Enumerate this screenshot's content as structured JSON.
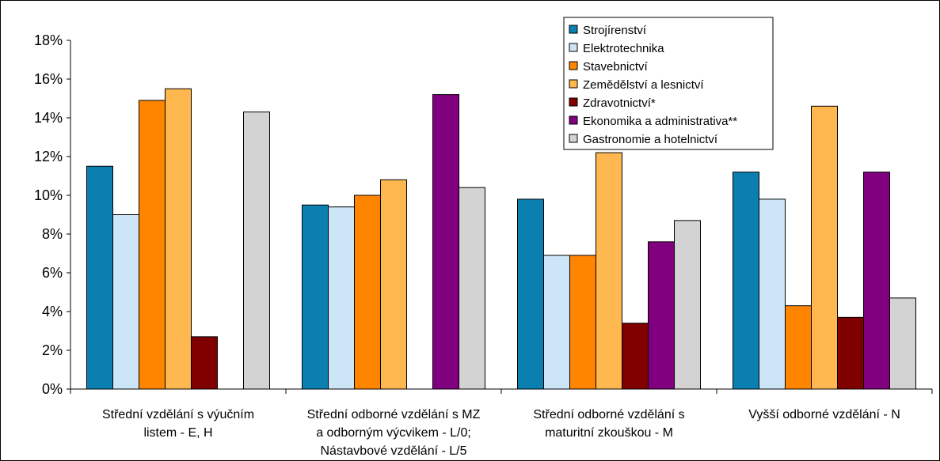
{
  "chart_data": {
    "type": "bar",
    "categories": [
      [
        "Střední vzdělání s výučním",
        "listem - E, H"
      ],
      [
        "Střední odborné vzdělání s MZ",
        "a odborným výcvikem - L/0;",
        "Nástavbové vzdělání - L/5"
      ],
      [
        "Střední odborné vzdělání s",
        "maturitní zkouškou - M"
      ],
      [
        "Vyšší odborné vzdělání - N"
      ]
    ],
    "series": [
      {
        "name": "Strojírenství",
        "color": "#0a7fb0",
        "values": [
          11.5,
          9.5,
          9.8,
          11.2
        ]
      },
      {
        "name": "Elektrotechnika",
        "color": "#cde6f7",
        "values": [
          9.0,
          9.4,
          6.9,
          9.8
        ]
      },
      {
        "name": "Stavebnictví",
        "color": "#ff8400",
        "values": [
          14.9,
          10.0,
          6.9,
          4.3
        ]
      },
      {
        "name": "Zemědělství a lesnictví",
        "color": "#ffb850",
        "values": [
          15.5,
          10.8,
          12.2,
          14.6
        ]
      },
      {
        "name": "Zdravotnictví*",
        "color": "#800000",
        "values": [
          2.7,
          0,
          3.4,
          3.7
        ]
      },
      {
        "name": "Ekonomika a administrativa**",
        "color": "#800080",
        "values": [
          0,
          15.2,
          7.6,
          11.2
        ]
      },
      {
        "name": "Gastronomie a hotelnictví",
        "color": "#d3d3d3",
        "values": [
          14.3,
          10.4,
          8.7,
          4.7
        ]
      }
    ],
    "ylim": [
      0,
      18
    ],
    "yticks": [
      "0%",
      "2%",
      "4%",
      "6%",
      "8%",
      "10%",
      "12%",
      "14%",
      "16%",
      "18%"
    ],
    "grid": false,
    "legend_position": "top-right"
  }
}
